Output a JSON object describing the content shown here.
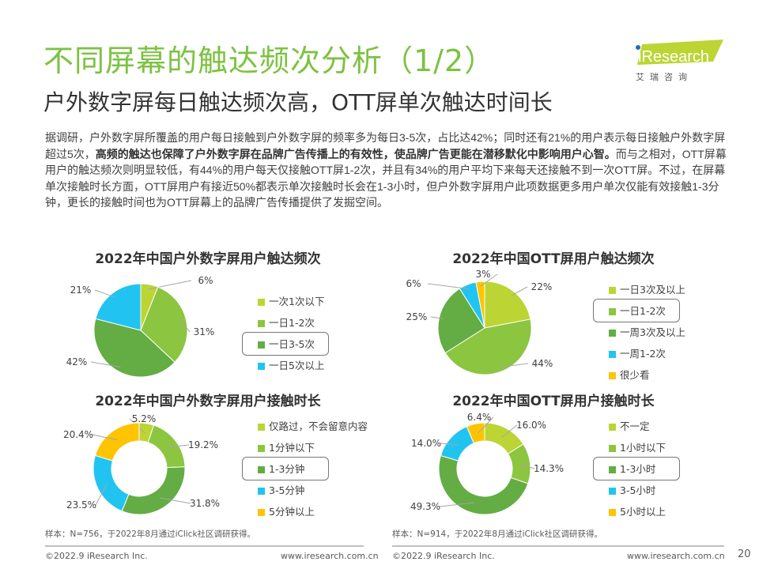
{
  "title": "不同屏幕的触达频次分析（1/2）",
  "subtitle": "户外数字屏每日触达频次高，OTT屏单次触达时间长",
  "logo": {
    "brand": "iResearch",
    "cn": "艾 瑞 咨 询"
  },
  "body": {
    "part1": "据调研，户外数字屏所覆盖的用户每日接触到户外数字屏的频率多为每日3-5次，占比达42%；同时还有21%的用户表示每日接触户外数字屏超过5次，",
    "bold": "高频的触达也保障了户外数字屏在品牌广告传播上的有效性，使品牌广告更能在潜移默化中影响用户心智。",
    "part2": "而与之相对，OTT屏幕用户的触达频次则明显较低，有44%的用户每天仅接触OTT屏1-2次，并且有34%的用户平均下来每天还接触不到一次OTT屏。不过，在屏幕单次接触时长方面，OTT屏用户有接近50%都表示单次接触时长会在1-3小时，但户外数字屏用户此项数据更多用户单次仅能有效接触1-3分钟，更长的接触时间也为OTT屏幕上的品牌广告传播提供了发掘空间。"
  },
  "colors": {
    "c1": "#bcd534",
    "c2": "#8cc540",
    "c3": "#63ad44",
    "c4": "#21c4f0",
    "c5": "#ffc400",
    "title": "#7dc242"
  },
  "chart_data": [
    {
      "type": "pie",
      "title": "2022年中国户外数字屏用户触达频次",
      "categories": [
        "一次1次以下",
        "一日1-2次",
        "一日3-5次",
        "一日5次以上"
      ],
      "values": [
        6,
        31,
        42,
        21
      ],
      "labels": [
        "6%",
        "31%",
        "42%",
        "21%"
      ],
      "colors": [
        "#bcd534",
        "#8cc540",
        "#63ad44",
        "#21c4f0"
      ],
      "highlighted": 2,
      "legend": "right"
    },
    {
      "type": "pie",
      "title": "2022年中国OTT屏用户触达频次",
      "categories": [
        "一日3次及以上",
        "一日1-2次",
        "一周3次及以上",
        "一周1-2次",
        "很少看"
      ],
      "values": [
        22,
        44,
        25,
        6,
        3
      ],
      "labels": [
        "22%",
        "44%",
        "25%",
        "6%",
        "3%"
      ],
      "colors": [
        "#bcd534",
        "#8cc540",
        "#63ad44",
        "#21c4f0",
        "#ffc400"
      ],
      "highlighted": 1,
      "legend": "right"
    },
    {
      "type": "donut",
      "title": "2022年中国户外数字屏用户接触时长",
      "categories": [
        "仅路过，不会留意内容",
        "1分钟以下",
        "1-3分钟",
        "3-5分钟",
        "5分钟以上"
      ],
      "values": [
        5.2,
        19.2,
        31.8,
        23.5,
        20.4
      ],
      "labels": [
        "5.2%",
        "19.2%",
        "31.8%",
        "23.5%",
        "20.4%"
      ],
      "colors": [
        "#bcd534",
        "#8cc540",
        "#63ad44",
        "#21c4f0",
        "#ffc400"
      ],
      "highlighted": 2,
      "legend": "right"
    },
    {
      "type": "donut",
      "title": "2022年中国OTT屏用户接触时长",
      "categories": [
        "不一定",
        "1小时以下",
        "1-3小时",
        "3-5小时",
        "5小时以上"
      ],
      "values": [
        16.0,
        14.3,
        49.3,
        14.0,
        6.4
      ],
      "labels": [
        "16.0%",
        "14.3%",
        "49.3%",
        "14.0%",
        "6.4%"
      ],
      "colors": [
        "#bcd534",
        "#8cc540",
        "#63ad44",
        "#21c4f0",
        "#ffc400"
      ],
      "highlighted": 2,
      "legend": "right"
    }
  ],
  "notes": [
    "样本：N=756，于2022年8月通过iClick社区调研获得。",
    "样本：N=914，于2022年8月通过iClick社区调研获得。"
  ],
  "footer": {
    "copyright": "©2022.9 iResearch Inc.",
    "url": "www.iresearch.com.cn",
    "page": "20"
  }
}
